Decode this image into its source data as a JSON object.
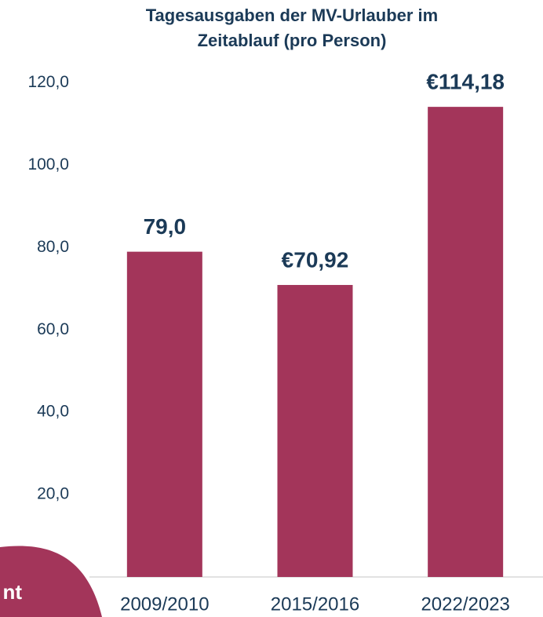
{
  "chart_data": {
    "type": "bar",
    "title": [
      "Tagesausgaben der MV-Urlauber im",
      "Zeitablauf (pro Person)"
    ],
    "categories": [
      "2009/2010",
      "2015/2016",
      "2022/2023"
    ],
    "values": [
      79.0,
      70.92,
      114.18
    ],
    "value_labels": [
      "79,0",
      "€70,92",
      "€114,18"
    ],
    "color": "#a3355a",
    "ylim": [
      0,
      120
    ],
    "yticks": [
      {
        "value": 20,
        "label": "20,0"
      },
      {
        "value": 40,
        "label": "40,0"
      },
      {
        "value": 60,
        "label": "60,0"
      },
      {
        "value": 80,
        "label": "80,0"
      },
      {
        "value": 100,
        "label": "100,0"
      },
      {
        "value": 120,
        "label": "120,0"
      }
    ],
    "grid": false,
    "annotations": [
      "nt"
    ]
  }
}
